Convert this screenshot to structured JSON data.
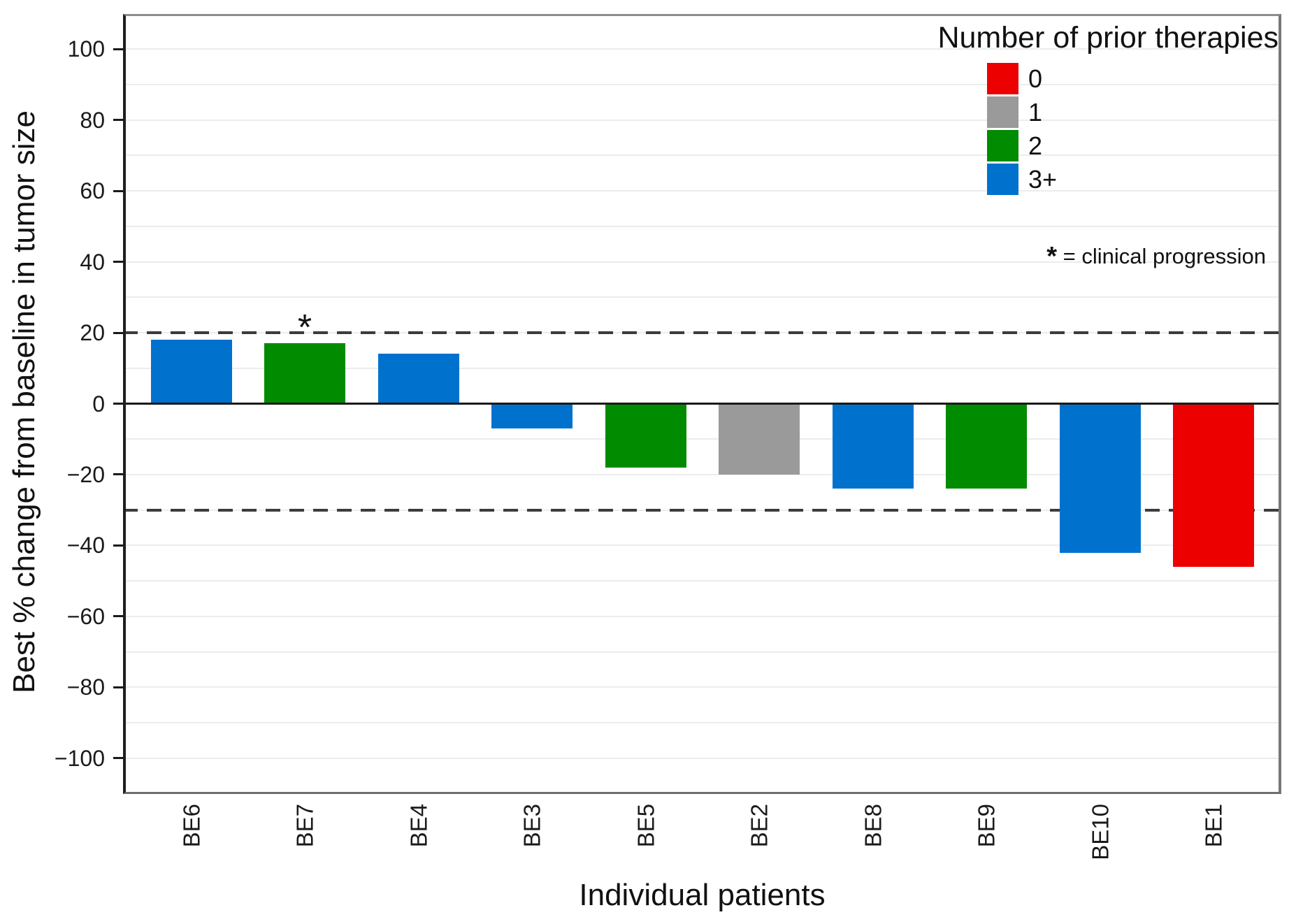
{
  "chart_data": {
    "type": "bar",
    "title": "",
    "xlabel": "Individual patients",
    "ylabel": "Best % change from baseline in tumor size",
    "ylim": [
      -110,
      110
    ],
    "yticks": [
      100,
      80,
      60,
      40,
      20,
      0,
      -20,
      -40,
      -60,
      -80,
      -100
    ],
    "gridline_step": 10,
    "grid": "on",
    "categories": [
      "BE6",
      "BE7",
      "BE4",
      "BE3",
      "BE5",
      "BE2",
      "BE8",
      "BE9",
      "BE10",
      "BE1"
    ],
    "values": [
      18,
      17,
      14,
      -7,
      -18,
      -20,
      -24,
      -24,
      -42,
      -46
    ],
    "groups": [
      "3+",
      "2",
      "3+",
      "3+",
      "2",
      "1",
      "3+",
      "2",
      "3+",
      "0"
    ],
    "reference_lines": [
      20,
      -30
    ],
    "clinical_progression_categories": [
      "BE7"
    ],
    "legend": {
      "title": "Number of prior therapies",
      "position": "top-right",
      "entries": [
        {
          "label": "0",
          "color": "#EC0000"
        },
        {
          "label": "1",
          "color": "#9A9A9A"
        },
        {
          "label": "2",
          "color": "#018B01"
        },
        {
          "label": "3+",
          "color": "#0072CE"
        }
      ]
    },
    "annotation": {
      "symbol": "*",
      "text": " = clinical progression"
    }
  }
}
